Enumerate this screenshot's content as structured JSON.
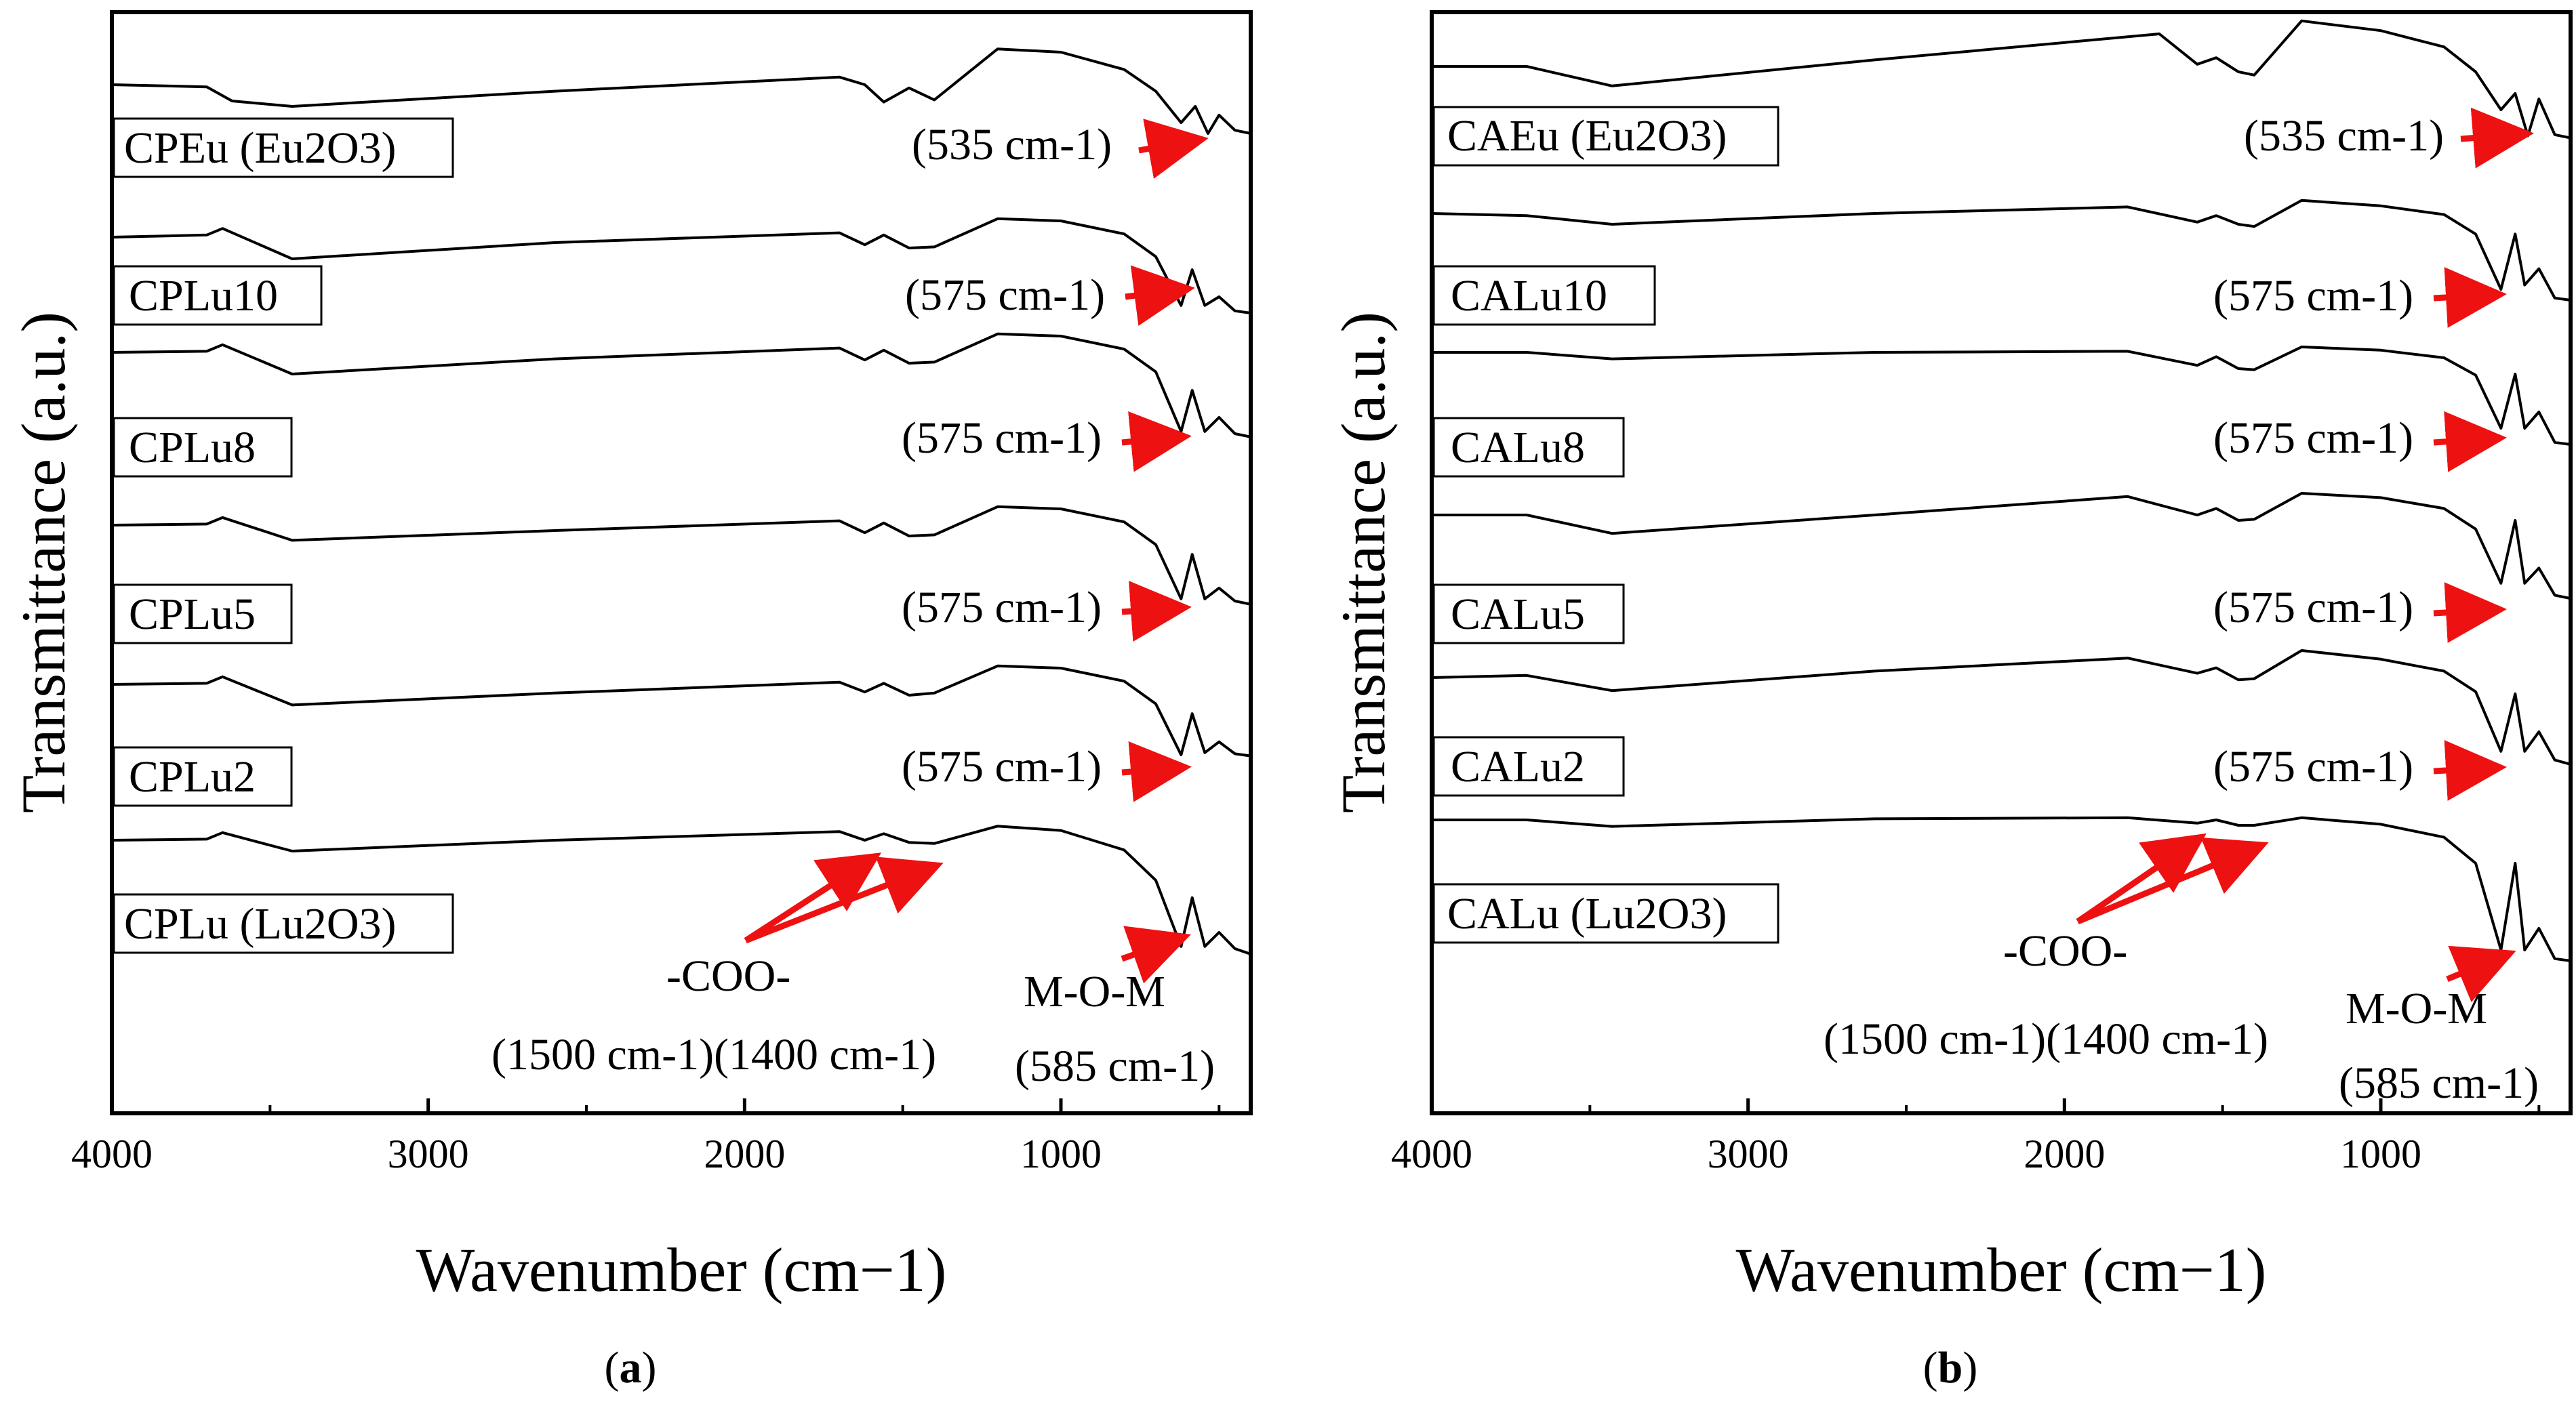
{
  "colors": {
    "axis": "#000000",
    "curve": "#000000",
    "arrow": "#ee1111",
    "background": "#ffffff"
  },
  "chart_data": [
    {
      "id": "a",
      "type": "line",
      "panel_label": "a",
      "xlabel": "Wavenumber (cm−1)",
      "ylabel": "Transmittance (a.u.)",
      "xlim": [
        4000,
        400
      ],
      "xticks": [
        "4000",
        "3000",
        "2000",
        "1000"
      ],
      "yticks_shown": false,
      "series": [
        {
          "name": "CPEu (Eu2O3)",
          "peak_note": "(535 cm-1)",
          "x": [
            4000,
            3700,
            3620,
            3430,
            2600,
            1700,
            1620,
            1560,
            1480,
            1400,
            1200,
            1000,
            800,
            700,
            620,
            575,
            535,
            500,
            450,
            400
          ],
          "y": [
            0,
            -0.2,
            -1.5,
            -2.0,
            -0.6,
            0.7,
            0.0,
            -1.6,
            -0.3,
            -1.4,
            3.3,
            3.0,
            1.4,
            -0.6,
            -3.5,
            -2.0,
            -4.5,
            -2.8,
            -4.2,
            -4.5
          ]
        },
        {
          "name": "CPLu10",
          "peak_note": "(575 cm-1)",
          "x": [
            4000,
            3700,
            3650,
            3430,
            2600,
            1700,
            1620,
            1560,
            1480,
            1400,
            1200,
            1000,
            800,
            700,
            620,
            585,
            545,
            500,
            450,
            400
          ],
          "y": [
            0,
            0.2,
            0.8,
            -2.0,
            -0.5,
            0.4,
            -0.7,
            0.2,
            -1.0,
            -0.9,
            1.7,
            1.5,
            0.3,
            -1.8,
            -6.3,
            -3.0,
            -6.3,
            -5.5,
            -6.8,
            -7.0
          ]
        },
        {
          "name": "CPLu8",
          "peak_note": "(575 cm-1)",
          "x": [
            4000,
            3700,
            3650,
            3430,
            2600,
            1700,
            1620,
            1560,
            1480,
            1400,
            1200,
            1000,
            800,
            700,
            620,
            585,
            545,
            500,
            450,
            400
          ],
          "y": [
            0,
            0.1,
            0.7,
            -2.0,
            -0.6,
            0.4,
            -0.7,
            0.2,
            -1.0,
            -0.9,
            1.7,
            1.5,
            0.3,
            -1.8,
            -7.3,
            -3.5,
            -7.3,
            -6.0,
            -7.5,
            -7.8
          ]
        },
        {
          "name": "CPLu5",
          "peak_note": "(575 cm-1)",
          "x": [
            4000,
            3700,
            3650,
            3430,
            2600,
            1700,
            1620,
            1560,
            1480,
            1400,
            1200,
            1000,
            800,
            700,
            620,
            585,
            545,
            500,
            450,
            400
          ],
          "y": [
            0,
            0.1,
            0.7,
            -1.4,
            -0.5,
            0.4,
            -0.7,
            0.2,
            -1.0,
            -0.9,
            1.7,
            1.5,
            0.3,
            -1.8,
            -6.8,
            -2.7,
            -6.8,
            -5.8,
            -7.0,
            -7.3
          ]
        },
        {
          "name": "CPLu2",
          "peak_note": "(575 cm-1)",
          "x": [
            4000,
            3700,
            3650,
            3430,
            2600,
            1700,
            1620,
            1560,
            1480,
            1400,
            1200,
            1000,
            800,
            700,
            620,
            585,
            545,
            500,
            450,
            400
          ],
          "y": [
            0,
            0.1,
            0.7,
            -1.9,
            -0.8,
            0.2,
            -0.7,
            0.1,
            -1.0,
            -0.8,
            1.7,
            1.5,
            0.3,
            -1.8,
            -6.5,
            -2.7,
            -6.3,
            -5.3,
            -6.4,
            -6.6
          ]
        },
        {
          "name": "CPLu (Lu2O3)",
          "peak_note": "",
          "x": [
            4000,
            3700,
            3650,
            3430,
            2600,
            1700,
            1620,
            1560,
            1480,
            1400,
            1200,
            1000,
            800,
            700,
            620,
            585,
            545,
            500,
            450,
            400
          ],
          "y": [
            0,
            0.1,
            0.7,
            -1.0,
            0.0,
            0.8,
            0.0,
            0.6,
            -0.2,
            -0.3,
            1.3,
            0.9,
            -0.9,
            -3.7,
            -9.8,
            -5.3,
            -9.8,
            -8.5,
            -10.0,
            -10.5
          ]
        }
      ],
      "annotations": [
        {
          "text": "-COO-",
          "note": "(1500 cm-1)(1400 cm-1)"
        },
        {
          "text": "M-O-M",
          "note": "(585 cm-1)"
        }
      ]
    },
    {
      "id": "b",
      "type": "line",
      "panel_label": "b",
      "xlabel": "Wavenumber (cm−1)",
      "ylabel": "Transmittance (a.u.)",
      "xlim": [
        4000,
        400
      ],
      "xticks": [
        "4000",
        "3000",
        "2000",
        "1000"
      ],
      "yticks_shown": false,
      "series": [
        {
          "name": "CAEu (Eu2O3)",
          "peak_note": "(535 cm-1)",
          "x": [
            4000,
            3700,
            3430,
            2600,
            1700,
            1580,
            1520,
            1450,
            1400,
            1250,
            1000,
            800,
            700,
            620,
            575,
            535,
            500,
            450,
            400
          ],
          "y": [
            0,
            0,
            -1.8,
            0.6,
            3.0,
            0.2,
            0.8,
            -0.5,
            -0.8,
            4.2,
            3.3,
            1.8,
            -0.5,
            -4.0,
            -2.5,
            -6.4,
            -3.0,
            -6.3,
            -6.6
          ]
        },
        {
          "name": "CALu10",
          "peak_note": "(575 cm-1)",
          "x": [
            4000,
            3700,
            3430,
            2600,
            1800,
            1580,
            1520,
            1450,
            1400,
            1250,
            1000,
            800,
            700,
            620,
            575,
            545,
            500,
            450,
            400
          ],
          "y": [
            0,
            -0.2,
            -1.0,
            0.0,
            0.6,
            -0.8,
            -0.2,
            -1.0,
            -1.2,
            1.2,
            0.7,
            -0.1,
            -1.9,
            -7.0,
            -1.9,
            -6.6,
            -5.1,
            -7.8,
            -8.0
          ]
        },
        {
          "name": "CALu8",
          "peak_note": "(575 cm-1)",
          "x": [
            4000,
            3700,
            3430,
            2600,
            1800,
            1580,
            1520,
            1450,
            1400,
            1250,
            1000,
            800,
            700,
            620,
            575,
            545,
            500,
            450,
            400
          ],
          "y": [
            0,
            0,
            -0.6,
            0.0,
            0.1,
            -1.2,
            -0.4,
            -1.5,
            -1.6,
            0.5,
            0.2,
            -0.5,
            -2.1,
            -7.0,
            -2.0,
            -7.0,
            -5.5,
            -8.3,
            -8.5
          ]
        },
        {
          "name": "CALu5",
          "peak_note": "(575 cm-1)",
          "x": [
            4000,
            3700,
            3430,
            2600,
            1800,
            1580,
            1520,
            1450,
            1400,
            1250,
            1000,
            800,
            700,
            620,
            575,
            545,
            500,
            450,
            400
          ],
          "y": [
            0,
            0,
            -1.7,
            0.0,
            1.7,
            0.0,
            0.6,
            -0.5,
            -0.4,
            2.0,
            1.6,
            0.6,
            -1.3,
            -6.3,
            -0.5,
            -6.3,
            -4.9,
            -7.4,
            -7.7
          ]
        },
        {
          "name": "CALu2",
          "peak_note": "(575 cm-1)",
          "x": [
            4000,
            3700,
            3430,
            2600,
            1800,
            1580,
            1520,
            1450,
            1400,
            1250,
            1000,
            800,
            700,
            620,
            575,
            545,
            500,
            450,
            400
          ],
          "y": [
            0,
            0.2,
            -1.2,
            0.6,
            1.8,
            0.4,
            0.9,
            -0.2,
            -0.1,
            2.5,
            1.7,
            0.6,
            -1.3,
            -6.8,
            -1.5,
            -6.8,
            -5.0,
            -7.6,
            -8.0
          ]
        },
        {
          "name": "CALu (Lu2O3)",
          "peak_note": "",
          "x": [
            4000,
            3700,
            3430,
            2600,
            1800,
            1580,
            1520,
            1450,
            1400,
            1250,
            1000,
            800,
            700,
            620,
            575,
            545,
            500,
            450,
            400
          ],
          "y": [
            0,
            0,
            -0.6,
            0.1,
            0.2,
            -0.3,
            0.0,
            -0.5,
            -0.5,
            0.2,
            -0.4,
            -1.6,
            -4.0,
            -12.0,
            -4.0,
            -12.0,
            -10.0,
            -12.8,
            -13.0
          ]
        }
      ],
      "annotations": [
        {
          "text": "-COO-",
          "note": "(1500 cm-1)(1400 cm-1)"
        },
        {
          "text": "M-O-M",
          "note": "(585 cm-1)"
        }
      ]
    }
  ]
}
